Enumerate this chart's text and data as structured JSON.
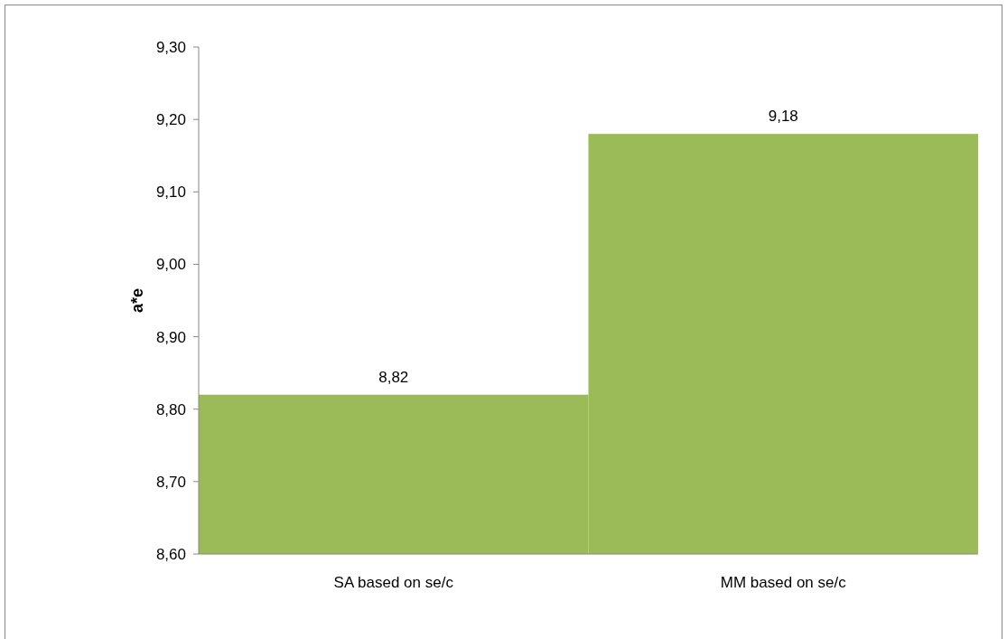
{
  "chart_data": {
    "type": "bar",
    "ylabel": "a*e",
    "categories": [
      "SA based on se/c",
      "MM based on se/c"
    ],
    "values": [
      8.82,
      9.18
    ],
    "value_labels": [
      "8,82",
      "9,18"
    ],
    "color": "#9bbb59",
    "ylim": [
      8.6,
      9.3
    ],
    "yticks": [
      {
        "value": 8.6,
        "label": "8,60"
      },
      {
        "value": 8.7,
        "label": "8,70"
      },
      {
        "value": 8.8,
        "label": "8,80"
      },
      {
        "value": 8.9,
        "label": "8,90"
      },
      {
        "value": 9.0,
        "label": "9,00"
      },
      {
        "value": 9.1,
        "label": "9,10"
      },
      {
        "value": 9.2,
        "label": "9,20"
      },
      {
        "value": 9.3,
        "label": "9,30"
      }
    ],
    "grid": false
  }
}
